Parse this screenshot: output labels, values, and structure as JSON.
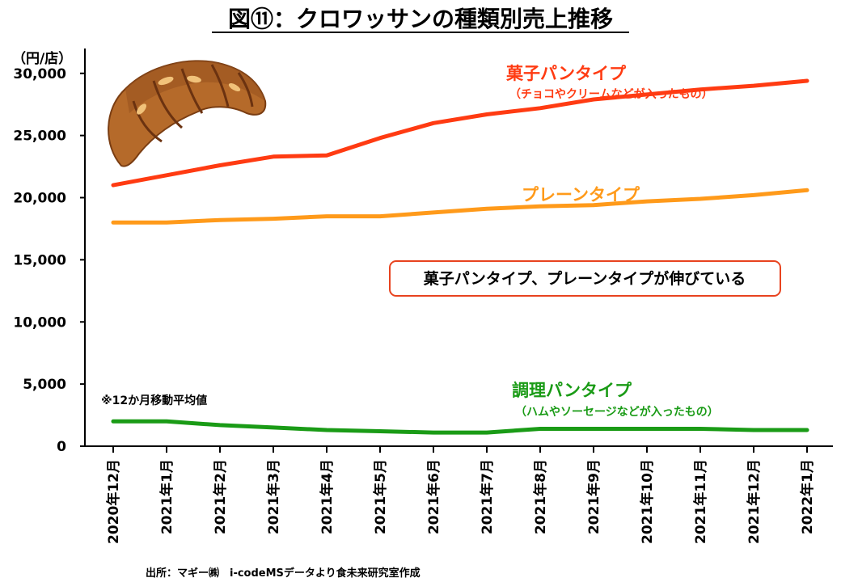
{
  "chart_data": {
    "type": "line",
    "title": "図⑪：クロワッサンの種類別売上推移",
    "ylabel": "（円/店）",
    "ylim": [
      0,
      32000
    ],
    "yticks": [
      0,
      5000,
      10000,
      15000,
      20000,
      25000,
      30000
    ],
    "ytick_labels": [
      "0",
      "5,000",
      "10,000",
      "15,000",
      "20,000",
      "25,000",
      "30,000"
    ],
    "categories": [
      "2020年12月",
      "2021年1月",
      "2021年2月",
      "2021年3月",
      "2021年4月",
      "2021年5月",
      "2021年6月",
      "2021年7月",
      "2021年8月",
      "2021年9月",
      "2021年10月",
      "2021年11月",
      "2021年12月",
      "2022年1月"
    ],
    "series": [
      {
        "name": "菓子パンタイプ",
        "sublabel": "（チョコやクリームなどが入ったもの）",
        "color": "#ff3b12",
        "values": [
          21000,
          21800,
          22600,
          23300,
          23400,
          24800,
          26000,
          26700,
          27200,
          27900,
          28300,
          28700,
          29000,
          29400
        ]
      },
      {
        "name": "プレーンタイプ",
        "sublabel": "",
        "color": "#ff9a1a",
        "values": [
          18000,
          18000,
          18200,
          18300,
          18500,
          18500,
          18800,
          19100,
          19300,
          19400,
          19700,
          19900,
          20200,
          20600
        ]
      },
      {
        "name": "調理パンタイプ",
        "sublabel": "（ハムやソーセージなどが入ったもの）",
        "color": "#1a9b16",
        "values": [
          2000,
          2000,
          1700,
          1500,
          1300,
          1200,
          1100,
          1100,
          1400,
          1400,
          1400,
          1400,
          1300,
          1300
        ]
      }
    ],
    "annotations": {
      "callout": "菓子パンタイプ、プレーンタイプが伸びている",
      "note": "※12か月移動平均値"
    },
    "source": "出所：マギー㈱　i-codeMSデータより食未来研究室作成",
    "grid": false
  },
  "colors": {
    "axis": "#000000",
    "callout_border": "#e8431f"
  },
  "image": {
    "croissant": "croissant-illustration"
  }
}
